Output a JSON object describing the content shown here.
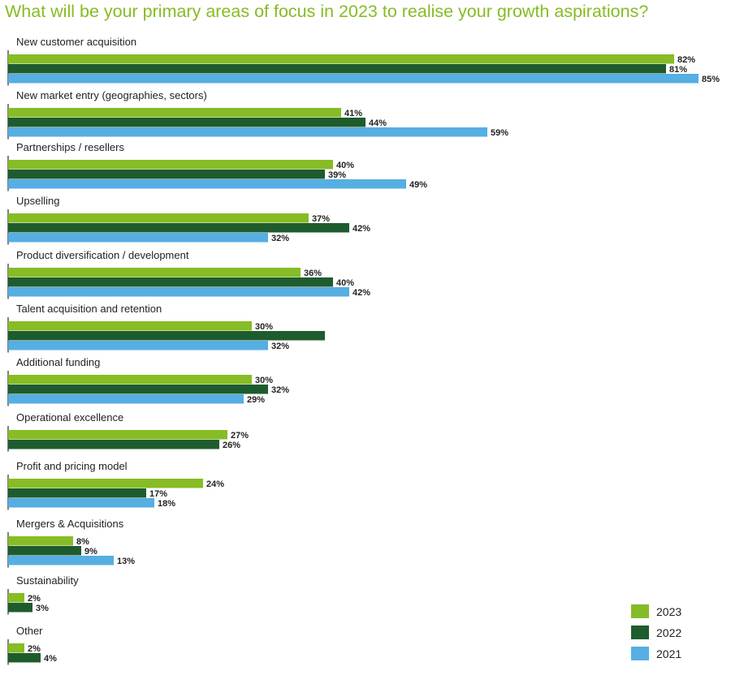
{
  "chart_data": {
    "type": "bar",
    "orientation": "horizontal",
    "title": "What will be your primary areas of focus in 2023 to realise your growth aspirations?",
    "categories": [
      "New customer acquisition",
      "New market entry (geographies, sectors)",
      "Partnerships / resellers",
      "Upselling",
      "Product diversification / development",
      "Talent acquisition and retention",
      "Additional funding",
      "Operational excellence",
      "Profit and pricing model",
      "Mergers & Acquisitions",
      "Sustainability",
      "Other"
    ],
    "series": [
      {
        "name": "2023",
        "color": "#86bc25",
        "values": [
          82,
          41,
          40,
          37,
          36,
          30,
          30,
          27,
          24,
          8,
          2,
          2
        ]
      },
      {
        "name": "2022",
        "color": "#1e5c2e",
        "values": [
          81,
          44,
          39,
          42,
          40,
          39,
          32,
          26,
          17,
          9,
          3,
          4
        ]
      },
      {
        "name": "2021",
        "color": "#56aee2",
        "values": [
          85,
          59,
          49,
          32,
          42,
          32,
          29,
          null,
          18,
          13,
          null,
          null
        ]
      }
    ],
    "value_labels": [
      [
        "82%",
        "81%",
        "85%"
      ],
      [
        "41%",
        "44%",
        "59%"
      ],
      [
        "40%",
        "39%",
        "49%"
      ],
      [
        "37%",
        "42%",
        "32%"
      ],
      [
        "36%",
        "40%",
        "42%"
      ],
      [
        "30%",
        "",
        "32%"
      ],
      [
        "30%",
        "32%",
        "29%"
      ],
      [
        "27%",
        "26%",
        ""
      ],
      [
        "24%",
        "17%",
        "18%"
      ],
      [
        "8%",
        "9%",
        "13%"
      ],
      [
        "2%",
        "3%",
        ""
      ],
      [
        "2%",
        "4%",
        ""
      ]
    ],
    "xlim": [
      0,
      85
    ],
    "legend_position": "bottom-right"
  }
}
